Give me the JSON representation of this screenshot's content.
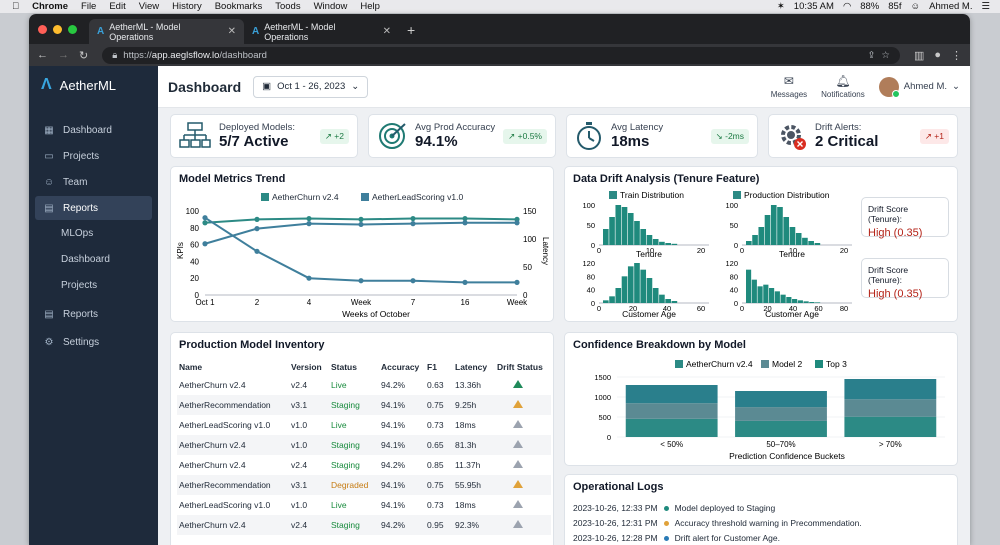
{
  "mac": {
    "app": "Chrome",
    "menu": [
      "File",
      "Edit",
      "View",
      "History",
      "Bookmarks",
      "Toods",
      "Window",
      "Help"
    ],
    "time": "10:35 AM",
    "battery": "88%",
    "extra": "85f",
    "user": "Ahmed M."
  },
  "browser": {
    "tabs": [
      "AetherML - Model Operations",
      "AetherML - Model Operations"
    ],
    "url_prefix": "https://",
    "url_host": "app.aeglsflow.lo",
    "url_path": "/dashboard"
  },
  "sidebar": {
    "brand": "AetherML",
    "items": [
      {
        "label": "Dashboard",
        "icon": "grid-icon"
      },
      {
        "label": "Projects",
        "icon": "folder-icon"
      },
      {
        "label": "Team",
        "icon": "team-icon"
      },
      {
        "label": "Reports",
        "icon": "reports-icon"
      }
    ],
    "subitems": [
      "MLOps",
      "Dashboard",
      "Projects"
    ],
    "bottom": [
      {
        "label": "Reports",
        "icon": "reports-icon"
      },
      {
        "label": "Settings",
        "icon": "gear-icon"
      }
    ]
  },
  "header": {
    "title": "Dashboard",
    "date_range": "Oct 1 - 26, 2023",
    "messages": "Messages",
    "notifications": "Notifications",
    "user": "Ahmed M."
  },
  "kpis": [
    {
      "title": "Deployed Models:",
      "value": "5/7 Active",
      "badge": "↗ +2"
    },
    {
      "title": "Avg Prod Accuracy",
      "value": "94.1%",
      "badge": "↗ +0.5%"
    },
    {
      "title": "Avg Latency",
      "value": "18ms",
      "badge": "↘ -2ms"
    },
    {
      "title": "Drift Alerts:",
      "value": "2 Critical",
      "badge": "↗ +1"
    }
  ],
  "trend": {
    "title": "Model Metrics Trend",
    "legend": [
      "AetherChurn v2.4",
      "AetherLeadScoring v1.0"
    ],
    "ylabel": "KPIs",
    "y2label": "Latency",
    "xlabel": "Weeks of October",
    "xticks": [
      "Oct 1",
      "2",
      "4",
      "Week",
      "7",
      "16",
      "Week"
    ],
    "yticks": [
      "100",
      "80",
      "60",
      "40",
      "20",
      "0"
    ],
    "y2ticks": [
      "150",
      "100",
      "50",
      "0"
    ]
  },
  "chart_data": {
    "type": "line",
    "title": "Model Metrics Trend",
    "categories": [
      "Oct 1",
      "2",
      "4",
      "Week",
      "7",
      "16",
      "Week"
    ],
    "xlabel": "Weeks of October",
    "ylabel": "KPIs",
    "y2label": "Latency",
    "ylim": [
      0,
      100
    ],
    "y2lim": [
      0,
      150
    ],
    "series": [
      {
        "name": "AetherChurn v2.4",
        "values": [
          86,
          90,
          91,
          90,
          91,
          91,
          90
        ]
      },
      {
        "name": "AetherLeadScoring v1.0",
        "values": [
          61,
          79,
          85,
          84,
          85,
          86,
          86
        ]
      },
      {
        "name": "",
        "values": [
          92,
          52,
          20,
          17,
          17,
          15,
          15
        ]
      }
    ]
  },
  "drift": {
    "title": "Data Drift Analysis (Tenure Feature)",
    "legend": [
      "Train Distribution",
      "Production Distribution"
    ],
    "xlabel1": "Tenure",
    "xlabel2": "Customer Age",
    "h1": {
      "yt": [
        "100",
        "50",
        "0"
      ],
      "xt": [
        "0",
        "10",
        "20"
      ]
    },
    "h2": {
      "yt": [
        "100",
        "50",
        "0"
      ],
      "xt": [
        "0",
        "10",
        "20"
      ]
    },
    "h3": {
      "yt": [
        "120",
        "80",
        "40",
        "0"
      ],
      "xt": [
        "0",
        "20",
        "40",
        "60"
      ]
    },
    "h4": {
      "yt": [
        "120",
        "80",
        "40",
        "0"
      ],
      "xt": [
        "0",
        "20",
        "40",
        "60",
        "80"
      ]
    },
    "scores": [
      {
        "label": "Drift Score (Tenure):",
        "value": "High (0.35)"
      },
      {
        "label": "Drift Score (Tenure):",
        "value": "High (0.35)"
      }
    ]
  },
  "inventory": {
    "title": "Production Model Inventory",
    "headers": [
      "Name",
      "Version",
      "Status",
      "Accuracy",
      "F1",
      "Latency",
      "Drift Status"
    ],
    "rows": [
      [
        "AetherChurn v2.4",
        "v2.4",
        "Live",
        "94.2%",
        "0.63",
        "13.36h",
        "green"
      ],
      [
        "AetherRecommendation",
        "v3.1",
        "Staging",
        "94.1%",
        "0.75",
        "9.25h",
        "amber"
      ],
      [
        "AetherLeadScoring v1.0",
        "v1.0",
        "Live",
        "94.1%",
        "0.73",
        "18ms",
        "grey"
      ],
      [
        "AetherChurn v2.4",
        "v1.0",
        "Staging",
        "94.1%",
        "0.65",
        "81.3h",
        "grey"
      ],
      [
        "AetherChurn v2.4",
        "v2.4",
        "Staging",
        "94.2%",
        "0.85",
        "11.37h",
        "grey"
      ],
      [
        "AetherRecommendation",
        "v3.1",
        "Degraded",
        "94.1%",
        "0.75",
        "55.95h",
        "amber"
      ],
      [
        "AetherLeadScoring v1.0",
        "v1.0",
        "Live",
        "94.1%",
        "0.73",
        "18ms",
        "grey"
      ],
      [
        "AetherChurn v2.4",
        "v2.4",
        "Staging",
        "94.2%",
        "0.95",
        "92.3%",
        "grey"
      ]
    ]
  },
  "confidence": {
    "title": "Confidence Breakdown by Model",
    "legend": [
      "AetherChurn v2.4",
      "Model 2",
      "Top 3"
    ],
    "xlabel": "Prediction Confidence Buckets",
    "categories": [
      "< 50%",
      "50–70%",
      "> 70%"
    ],
    "yticks": [
      "1500",
      "1000",
      "500",
      "0"
    ],
    "totals": [
      1300,
      1150,
      1450
    ],
    "ymax": 1500
  },
  "logs": {
    "title": "Operational Logs",
    "entries": [
      {
        "time": "2023-10-26, 12:33 PM",
        "text": "Model deployed to Staging",
        "color": "#1f8a7d"
      },
      {
        "time": "2023-10-26, 12:31 PM",
        "text": "Accuracy threshold warning in Precommendation.",
        "color": "#e0a23a"
      },
      {
        "time": "2023-10-26, 12:28 PM",
        "text": "Drift alert for Customer Age.",
        "color": "#2a7bb6"
      }
    ]
  }
}
